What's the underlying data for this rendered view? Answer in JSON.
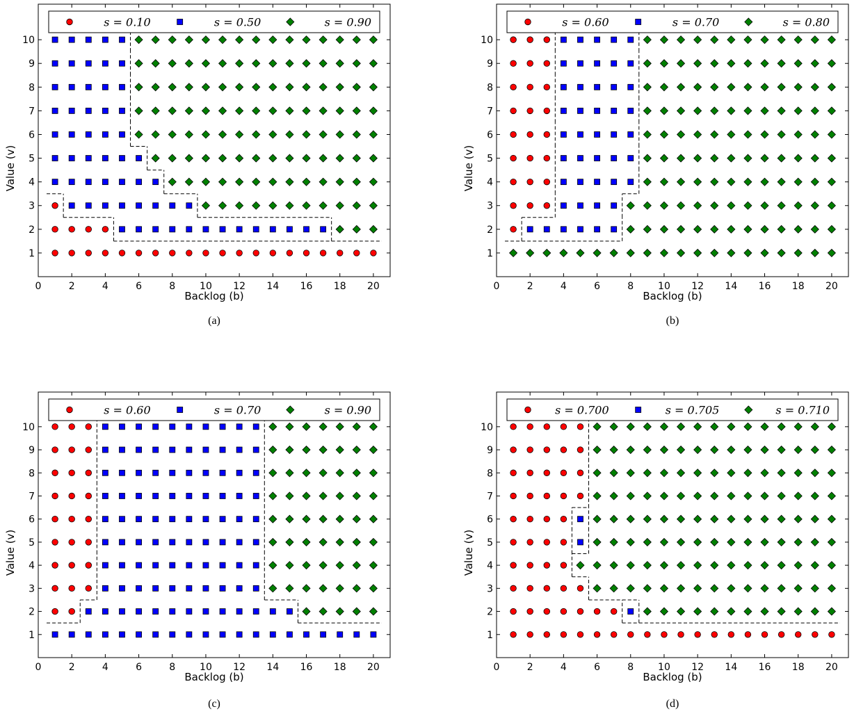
{
  "chart_data": [
    {
      "type": "scatter",
      "caption": "(a)",
      "xlabel": "Backlog (b)",
      "ylabel": "Value (v)",
      "xlim": [
        0,
        21
      ],
      "ylim": [
        0,
        11.5
      ],
      "xticks": [
        0,
        2,
        4,
        6,
        8,
        10,
        12,
        14,
        16,
        18,
        20
      ],
      "yticks": [
        1,
        2,
        3,
        4,
        5,
        6,
        7,
        8,
        9,
        10
      ],
      "legend_location": "top",
      "classes": [
        {
          "label": "s = 0.10",
          "marker": "circle",
          "color": "#ff0000"
        },
        {
          "label": "s = 0.50",
          "marker": "square",
          "color": "#0000ff"
        },
        {
          "label": "s = 0.90",
          "marker": "diamond",
          "color": "#008000"
        }
      ],
      "grid_by_value": [
        [
          0,
          0,
          0,
          0,
          0,
          0,
          0,
          0,
          0,
          0,
          0,
          0,
          0,
          0,
          0,
          0,
          0,
          0,
          0,
          0
        ],
        [
          0,
          0,
          0,
          0,
          1,
          1,
          1,
          1,
          1,
          1,
          1,
          1,
          1,
          1,
          1,
          1,
          1,
          2,
          2,
          2
        ],
        [
          0,
          1,
          1,
          1,
          1,
          1,
          1,
          1,
          1,
          2,
          2,
          2,
          2,
          2,
          2,
          2,
          2,
          2,
          2,
          2
        ],
        [
          1,
          1,
          1,
          1,
          1,
          1,
          1,
          2,
          2,
          2,
          2,
          2,
          2,
          2,
          2,
          2,
          2,
          2,
          2,
          2
        ],
        [
          1,
          1,
          1,
          1,
          1,
          1,
          2,
          2,
          2,
          2,
          2,
          2,
          2,
          2,
          2,
          2,
          2,
          2,
          2,
          2
        ],
        [
          1,
          1,
          1,
          1,
          1,
          2,
          2,
          2,
          2,
          2,
          2,
          2,
          2,
          2,
          2,
          2,
          2,
          2,
          2,
          2
        ],
        [
          1,
          1,
          1,
          1,
          1,
          2,
          2,
          2,
          2,
          2,
          2,
          2,
          2,
          2,
          2,
          2,
          2,
          2,
          2,
          2
        ],
        [
          1,
          1,
          1,
          1,
          1,
          2,
          2,
          2,
          2,
          2,
          2,
          2,
          2,
          2,
          2,
          2,
          2,
          2,
          2,
          2
        ],
        [
          1,
          1,
          1,
          1,
          1,
          2,
          2,
          2,
          2,
          2,
          2,
          2,
          2,
          2,
          2,
          2,
          2,
          2,
          2,
          2
        ],
        [
          1,
          1,
          1,
          1,
          1,
          2,
          2,
          2,
          2,
          2,
          2,
          2,
          2,
          2,
          2,
          2,
          2,
          2,
          2,
          2
        ]
      ]
    },
    {
      "type": "scatter",
      "caption": "(b)",
      "xlabel": "Backlog (b)",
      "ylabel": "Value (v)",
      "xlim": [
        0,
        21
      ],
      "ylim": [
        0,
        11.5
      ],
      "xticks": [
        0,
        2,
        4,
        6,
        8,
        10,
        12,
        14,
        16,
        18,
        20
      ],
      "yticks": [
        1,
        2,
        3,
        4,
        5,
        6,
        7,
        8,
        9,
        10
      ],
      "legend_location": "top",
      "classes": [
        {
          "label": "s = 0.60",
          "marker": "circle",
          "color": "#ff0000"
        },
        {
          "label": "s = 0.70",
          "marker": "square",
          "color": "#0000ff"
        },
        {
          "label": "s = 0.80",
          "marker": "diamond",
          "color": "#008000"
        }
      ],
      "grid_by_value": [
        [
          2,
          2,
          2,
          2,
          2,
          2,
          2,
          2,
          2,
          2,
          2,
          2,
          2,
          2,
          2,
          2,
          2,
          2,
          2,
          2
        ],
        [
          0,
          1,
          1,
          1,
          1,
          1,
          1,
          2,
          2,
          2,
          2,
          2,
          2,
          2,
          2,
          2,
          2,
          2,
          2,
          2
        ],
        [
          0,
          0,
          0,
          1,
          1,
          1,
          1,
          2,
          2,
          2,
          2,
          2,
          2,
          2,
          2,
          2,
          2,
          2,
          2,
          2
        ],
        [
          0,
          0,
          0,
          1,
          1,
          1,
          1,
          1,
          2,
          2,
          2,
          2,
          2,
          2,
          2,
          2,
          2,
          2,
          2,
          2
        ],
        [
          0,
          0,
          0,
          1,
          1,
          1,
          1,
          1,
          2,
          2,
          2,
          2,
          2,
          2,
          2,
          2,
          2,
          2,
          2,
          2
        ],
        [
          0,
          0,
          0,
          1,
          1,
          1,
          1,
          1,
          2,
          2,
          2,
          2,
          2,
          2,
          2,
          2,
          2,
          2,
          2,
          2
        ],
        [
          0,
          0,
          0,
          1,
          1,
          1,
          1,
          1,
          2,
          2,
          2,
          2,
          2,
          2,
          2,
          2,
          2,
          2,
          2,
          2
        ],
        [
          0,
          0,
          0,
          1,
          1,
          1,
          1,
          1,
          2,
          2,
          2,
          2,
          2,
          2,
          2,
          2,
          2,
          2,
          2,
          2
        ],
        [
          0,
          0,
          0,
          1,
          1,
          1,
          1,
          1,
          2,
          2,
          2,
          2,
          2,
          2,
          2,
          2,
          2,
          2,
          2,
          2
        ],
        [
          0,
          0,
          0,
          1,
          1,
          1,
          1,
          1,
          2,
          2,
          2,
          2,
          2,
          2,
          2,
          2,
          2,
          2,
          2,
          2
        ]
      ]
    },
    {
      "type": "scatter",
      "caption": "(c)",
      "xlabel": "Backlog (b)",
      "ylabel": "Value (v)",
      "xlim": [
        0,
        21
      ],
      "ylim": [
        0,
        11.5
      ],
      "xticks": [
        0,
        2,
        4,
        6,
        8,
        10,
        12,
        14,
        16,
        18,
        20
      ],
      "yticks": [
        1,
        2,
        3,
        4,
        5,
        6,
        7,
        8,
        9,
        10
      ],
      "legend_location": "top",
      "classes": [
        {
          "label": "s = 0.60",
          "marker": "circle",
          "color": "#ff0000"
        },
        {
          "label": "s = 0.70",
          "marker": "square",
          "color": "#0000ff"
        },
        {
          "label": "s = 0.90",
          "marker": "diamond",
          "color": "#008000"
        }
      ],
      "grid_by_value": [
        [
          1,
          1,
          1,
          1,
          1,
          1,
          1,
          1,
          1,
          1,
          1,
          1,
          1,
          1,
          1,
          1,
          1,
          1,
          1,
          1
        ],
        [
          0,
          0,
          1,
          1,
          1,
          1,
          1,
          1,
          1,
          1,
          1,
          1,
          1,
          1,
          1,
          2,
          2,
          2,
          2,
          2
        ],
        [
          0,
          0,
          0,
          1,
          1,
          1,
          1,
          1,
          1,
          1,
          1,
          1,
          1,
          2,
          2,
          2,
          2,
          2,
          2,
          2
        ],
        [
          0,
          0,
          0,
          1,
          1,
          1,
          1,
          1,
          1,
          1,
          1,
          1,
          1,
          2,
          2,
          2,
          2,
          2,
          2,
          2
        ],
        [
          0,
          0,
          0,
          1,
          1,
          1,
          1,
          1,
          1,
          1,
          1,
          1,
          1,
          2,
          2,
          2,
          2,
          2,
          2,
          2
        ],
        [
          0,
          0,
          0,
          1,
          1,
          1,
          1,
          1,
          1,
          1,
          1,
          1,
          1,
          2,
          2,
          2,
          2,
          2,
          2,
          2
        ],
        [
          0,
          0,
          0,
          1,
          1,
          1,
          1,
          1,
          1,
          1,
          1,
          1,
          1,
          2,
          2,
          2,
          2,
          2,
          2,
          2
        ],
        [
          0,
          0,
          0,
          1,
          1,
          1,
          1,
          1,
          1,
          1,
          1,
          1,
          1,
          2,
          2,
          2,
          2,
          2,
          2,
          2
        ],
        [
          0,
          0,
          0,
          1,
          1,
          1,
          1,
          1,
          1,
          1,
          1,
          1,
          1,
          2,
          2,
          2,
          2,
          2,
          2,
          2
        ],
        [
          0,
          0,
          0,
          1,
          1,
          1,
          1,
          1,
          1,
          1,
          1,
          1,
          1,
          2,
          2,
          2,
          2,
          2,
          2,
          2
        ]
      ]
    },
    {
      "type": "scatter",
      "caption": "(d)",
      "xlabel": "Backlog (b)",
      "ylabel": "Value (v)",
      "xlim": [
        0,
        21
      ],
      "ylim": [
        0,
        11.5
      ],
      "xticks": [
        0,
        2,
        4,
        6,
        8,
        10,
        12,
        14,
        16,
        18,
        20
      ],
      "yticks": [
        1,
        2,
        3,
        4,
        5,
        6,
        7,
        8,
        9,
        10
      ],
      "legend_location": "top",
      "classes": [
        {
          "label": "s = 0.700",
          "marker": "circle",
          "color": "#ff0000"
        },
        {
          "label": "s = 0.705",
          "marker": "square",
          "color": "#0000ff"
        },
        {
          "label": "s = 0.710",
          "marker": "diamond",
          "color": "#008000"
        }
      ],
      "grid_by_value": [
        [
          0,
          0,
          0,
          0,
          0,
          0,
          0,
          0,
          0,
          0,
          0,
          0,
          0,
          0,
          0,
          0,
          0,
          0,
          0,
          0
        ],
        [
          0,
          0,
          0,
          0,
          0,
          0,
          0,
          1,
          2,
          2,
          2,
          2,
          2,
          2,
          2,
          2,
          2,
          2,
          2,
          2
        ],
        [
          0,
          0,
          0,
          0,
          0,
          2,
          2,
          2,
          2,
          2,
          2,
          2,
          2,
          2,
          2,
          2,
          2,
          2,
          2,
          2
        ],
        [
          0,
          0,
          0,
          0,
          2,
          2,
          2,
          2,
          2,
          2,
          2,
          2,
          2,
          2,
          2,
          2,
          2,
          2,
          2,
          2
        ],
        [
          0,
          0,
          0,
          0,
          1,
          2,
          2,
          2,
          2,
          2,
          2,
          2,
          2,
          2,
          2,
          2,
          2,
          2,
          2,
          2
        ],
        [
          0,
          0,
          0,
          0,
          1,
          2,
          2,
          2,
          2,
          2,
          2,
          2,
          2,
          2,
          2,
          2,
          2,
          2,
          2,
          2
        ],
        [
          0,
          0,
          0,
          0,
          0,
          2,
          2,
          2,
          2,
          2,
          2,
          2,
          2,
          2,
          2,
          2,
          2,
          2,
          2,
          2
        ],
        [
          0,
          0,
          0,
          0,
          0,
          2,
          2,
          2,
          2,
          2,
          2,
          2,
          2,
          2,
          2,
          2,
          2,
          2,
          2,
          2
        ],
        [
          0,
          0,
          0,
          0,
          0,
          2,
          2,
          2,
          2,
          2,
          2,
          2,
          2,
          2,
          2,
          2,
          2,
          2,
          2,
          2
        ],
        [
          0,
          0,
          0,
          0,
          0,
          2,
          2,
          2,
          2,
          2,
          2,
          2,
          2,
          2,
          2,
          2,
          2,
          2,
          2,
          2
        ]
      ]
    }
  ]
}
